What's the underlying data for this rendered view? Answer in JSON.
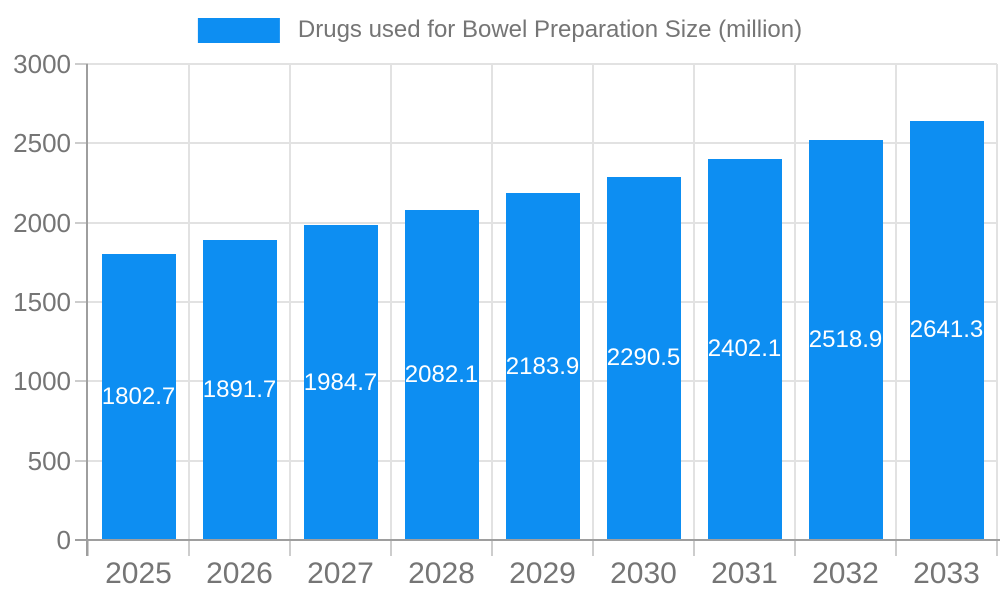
{
  "chart_data": {
    "type": "bar",
    "title": "Drugs used for Bowel Preparation Size (million)",
    "categories": [
      "2025",
      "2026",
      "2027",
      "2028",
      "2029",
      "2030",
      "2031",
      "2032",
      "2033"
    ],
    "values": [
      1802.7,
      1891.7,
      1984.7,
      2082.1,
      2183.9,
      2290.5,
      2402.1,
      2518.9,
      2641.3
    ],
    "xlabel": "",
    "ylabel": "",
    "ylim": [
      0,
      3000
    ],
    "yticks": [
      0,
      500,
      1000,
      1500,
      2000,
      2500,
      3000
    ],
    "grid": "horizontal and vertical gridlines on",
    "legend_position": "top-center",
    "value_labels_position": "inside bars, centered"
  },
  "style": {
    "bar_color": "#0d8ef2",
    "grid_color": "#e2e2e2",
    "tick_color": "#cdcdcd",
    "axis_color": "#9e9e9e",
    "tick_label_color": "#757575",
    "title_color": "#757575",
    "bar_label_color": "#ffffff",
    "background": "#ffffff"
  }
}
